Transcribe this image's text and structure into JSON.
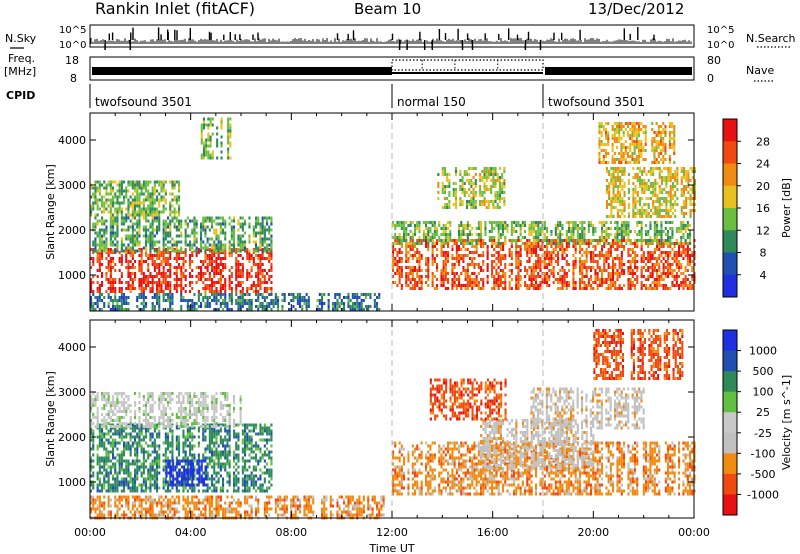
{
  "header": {
    "title": "Rankin Inlet (fitACF)",
    "beam": "Beam 10",
    "date": "13/Dec/2012"
  },
  "strip": {
    "nsky_label": "N.Sky",
    "nsearch_label": "N.Search",
    "freq_label": "Freq.",
    "freq_unit": "[MHz]",
    "nave_label": "Nave",
    "cpid_label": "CPID",
    "nsky_ticks": [
      "10^5",
      "10^0"
    ],
    "nsearch_ticks": [
      "10^5",
      "10^0"
    ],
    "freq_ticks": [
      "18",
      "8"
    ],
    "nave_ticks": [
      "80",
      "0"
    ]
  },
  "cpid_segments": [
    {
      "label": "twofsound 3501",
      "start_h": 0,
      "end_h": 12
    },
    {
      "label": "normal 150",
      "start_h": 12,
      "end_h": 18
    },
    {
      "label": "twofsound 3501",
      "start_h": 18,
      "end_h": 24
    }
  ],
  "colors": {
    "power": [
      "#2030e0",
      "#2050b0",
      "#2f8a5a",
      "#6abf40",
      "#e8c020",
      "#f08a10",
      "#f04a10",
      "#e81010"
    ],
    "velocity": [
      "#e81010",
      "#f04a10",
      "#f08a10",
      "#c0c0c0",
      "#c8c8c8",
      "#60c040",
      "#2f8a5a",
      "#2050b0",
      "#2030e0"
    ]
  },
  "chart_data": [
    {
      "type": "heatmap",
      "title": "Power",
      "xlabel": "Time UT",
      "ylabel": "Slant Range [km]",
      "x_ticks": [
        "00:00",
        "04:00",
        "08:00",
        "12:00",
        "16:00",
        "20:00",
        "00:00"
      ],
      "xlim_hours": [
        0,
        24
      ],
      "ylim_km": [
        200,
        4600
      ],
      "y_ticks": [
        1000,
        2000,
        3000,
        4000
      ],
      "colorbar": {
        "label": "Power [dB]",
        "ticks": [
          4,
          8,
          12,
          16,
          20,
          24,
          28
        ],
        "range": [
          0,
          32
        ]
      },
      "regions": [
        {
          "t0": 0,
          "t1": 7.2,
          "r0": 600,
          "r1": 1600,
          "level": 28
        },
        {
          "t0": 0,
          "t1": 7.2,
          "r0": 1500,
          "r1": 2300,
          "level": 12
        },
        {
          "t0": 0,
          "t1": 3.5,
          "r0": 2300,
          "r1": 3100,
          "level": 14
        },
        {
          "t0": 0,
          "t1": 11.5,
          "r0": 200,
          "r1": 600,
          "level": 8
        },
        {
          "t0": 12,
          "t1": 24,
          "r0": 700,
          "r1": 1800,
          "level": 26
        },
        {
          "t0": 12,
          "t1": 24,
          "r0": 1700,
          "r1": 2200,
          "level": 14
        },
        {
          "t0": 13.8,
          "t1": 16.5,
          "r0": 2500,
          "r1": 3400,
          "level": 16
        },
        {
          "t0": 20.5,
          "t1": 24,
          "r0": 2300,
          "r1": 3400,
          "level": 18
        },
        {
          "t0": 20.2,
          "t1": 23.2,
          "r0": 3500,
          "r1": 4400,
          "level": 20
        },
        {
          "t0": 4.4,
          "t1": 5.6,
          "r0": 3600,
          "r1": 4500,
          "level": 14
        }
      ]
    },
    {
      "type": "heatmap",
      "title": "Velocity",
      "xlabel": "Time UT",
      "ylabel": "Slant Range [km]",
      "x_ticks": [
        "00:00",
        "04:00",
        "08:00",
        "12:00",
        "16:00",
        "20:00",
        "00:00"
      ],
      "xlim_hours": [
        0,
        24
      ],
      "ylim_km": [
        200,
        4600
      ],
      "y_ticks": [
        1000,
        2000,
        3000,
        4000
      ],
      "colorbar": {
        "label": "Velocity [m s^-1]",
        "ticks": [
          "1000",
          "500",
          "100",
          "25",
          "-25",
          "-100",
          "-500",
          "-1000"
        ]
      },
      "regions": [
        {
          "t0": 0,
          "t1": 7.2,
          "r0": 800,
          "r1": 2300,
          "level": 6
        },
        {
          "t0": 3.0,
          "t1": 4.6,
          "r0": 900,
          "r1": 1500,
          "level": 8
        },
        {
          "t0": 0,
          "t1": 6.0,
          "r0": 2200,
          "r1": 3000,
          "level": 4
        },
        {
          "t0": 0,
          "t1": 11.8,
          "r0": 200,
          "r1": 700,
          "level": 2
        },
        {
          "t0": 12,
          "t1": 24,
          "r0": 700,
          "r1": 1900,
          "level": 2
        },
        {
          "t0": 15.5,
          "t1": 20,
          "r0": 1300,
          "r1": 2400,
          "level": 3
        },
        {
          "t0": 17.5,
          "t1": 22,
          "r0": 2200,
          "r1": 3100,
          "level": 3
        },
        {
          "t0": 13.5,
          "t1": 16.5,
          "r0": 2400,
          "r1": 3300,
          "level": 1
        },
        {
          "t0": 20,
          "t1": 23.5,
          "r0": 3300,
          "r1": 4400,
          "level": 1
        }
      ]
    }
  ]
}
